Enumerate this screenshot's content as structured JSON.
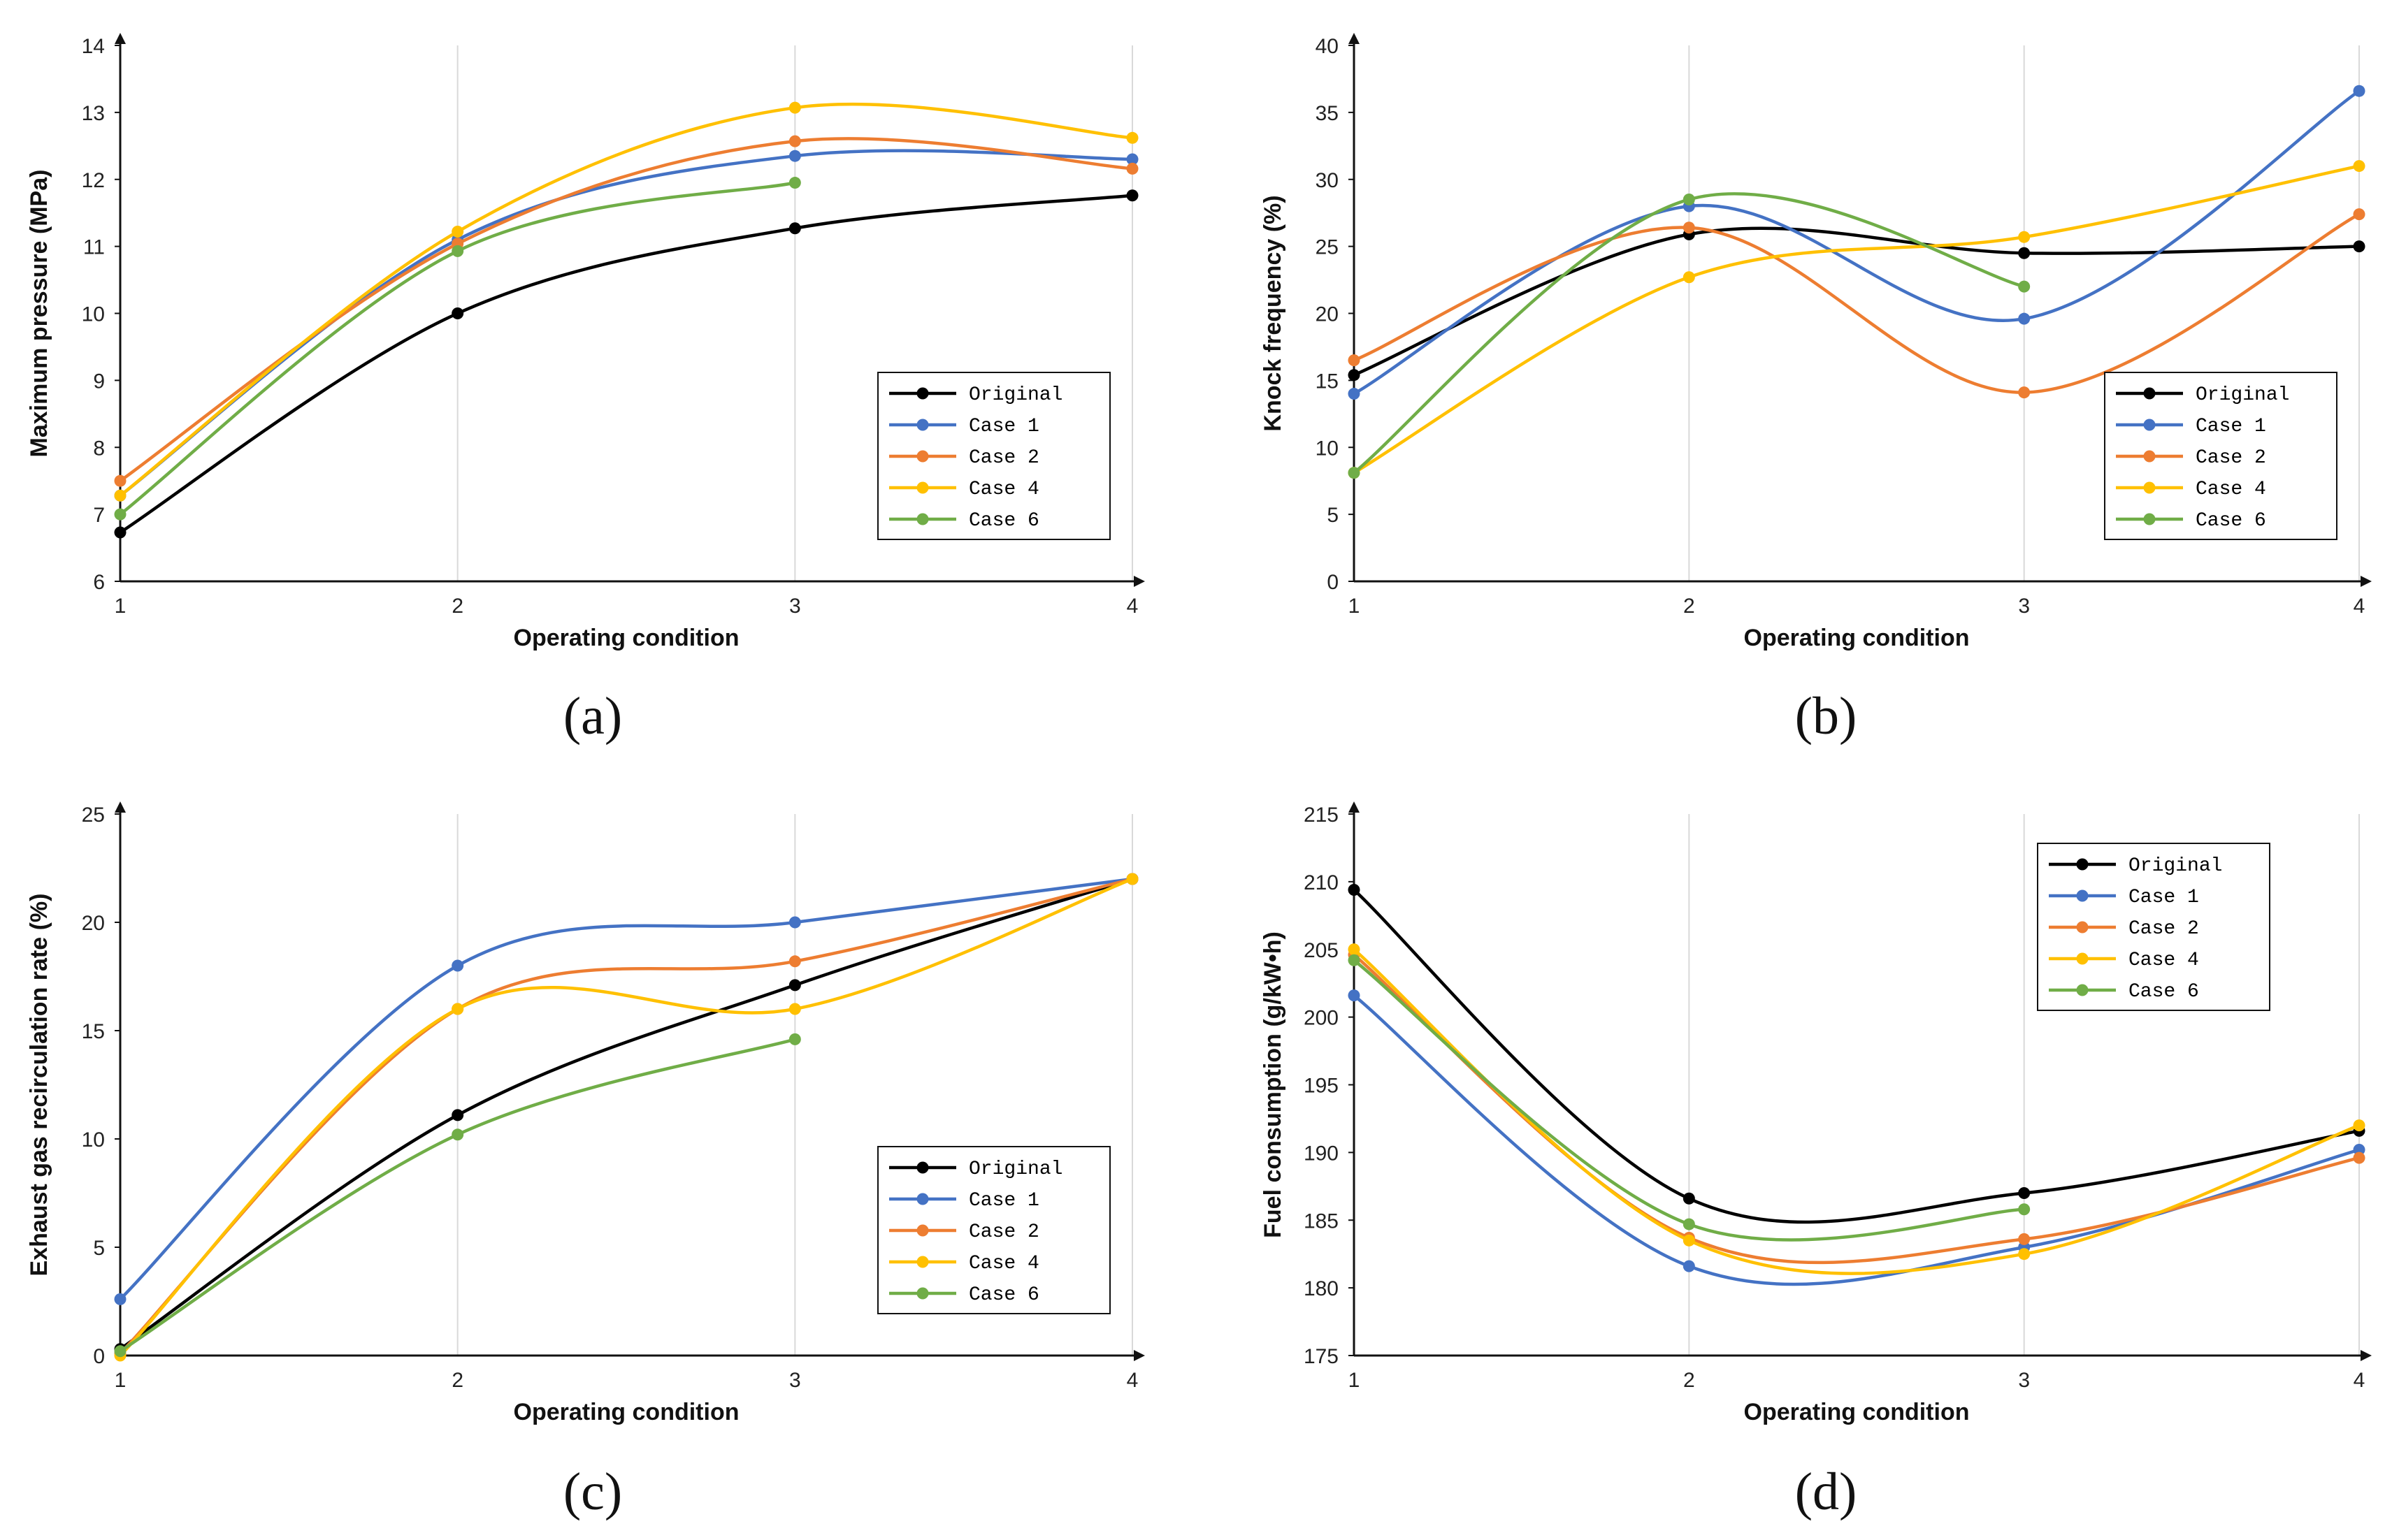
{
  "chart_data": [
    {
      "type": "line",
      "panel_label": "(a)",
      "xlabel": "Operating condition",
      "ylabel": "Maximum pressure (MPa)",
      "x": [
        1,
        2,
        3,
        4
      ],
      "xlim": [
        1,
        4
      ],
      "ylim": [
        6,
        14
      ],
      "ytick_step": 1,
      "legend_position": "bottom-right",
      "series": [
        {
          "name": "Original",
          "color": "#000000",
          "values": [
            6.73,
            10.0,
            11.27,
            11.76
          ]
        },
        {
          "name": "Case 1",
          "color": "#4472C4",
          "values": [
            7.28,
            11.1,
            12.35,
            12.3
          ]
        },
        {
          "name": "Case 2",
          "color": "#ED7D31",
          "values": [
            7.5,
            11.04,
            12.57,
            12.16
          ]
        },
        {
          "name": "Case 4",
          "color": "#FFC000",
          "values": [
            7.28,
            11.22,
            13.07,
            12.62
          ]
        },
        {
          "name": "Case 6",
          "color": "#70AD47",
          "values": [
            7.0,
            10.93,
            11.95,
            null
          ]
        }
      ]
    },
    {
      "type": "line",
      "panel_label": "(b)",
      "xlabel": "Operating condition",
      "ylabel": "Knock frequency (%)",
      "x": [
        1,
        2,
        3,
        4
      ],
      "xlim": [
        1,
        4
      ],
      "ylim": [
        0,
        40
      ],
      "ytick_step": 5,
      "legend_position": "bottom-right",
      "series": [
        {
          "name": "Original",
          "color": "#000000",
          "values": [
            15.4,
            25.9,
            24.5,
            25.0
          ]
        },
        {
          "name": "Case 1",
          "color": "#4472C4",
          "values": [
            14.0,
            28.0,
            19.6,
            36.6
          ]
        },
        {
          "name": "Case 2",
          "color": "#ED7D31",
          "values": [
            16.5,
            26.4,
            14.1,
            27.4
          ]
        },
        {
          "name": "Case 4",
          "color": "#FFC000",
          "values": [
            8.1,
            22.7,
            25.7,
            31.0
          ]
        },
        {
          "name": "Case 6",
          "color": "#70AD47",
          "values": [
            8.1,
            28.5,
            22.0,
            null
          ]
        }
      ]
    },
    {
      "type": "line",
      "panel_label": "(c)",
      "xlabel": "Operating condition",
      "ylabel": "Exhaust gas recirculation rate (%)",
      "x": [
        1,
        2,
        3,
        4
      ],
      "xlim": [
        1,
        4
      ],
      "ylim": [
        0,
        25
      ],
      "ytick_step": 5,
      "legend_position": "bottom-right",
      "series": [
        {
          "name": "Original",
          "color": "#000000",
          "values": [
            0.3,
            11.1,
            17.1,
            22.0
          ]
        },
        {
          "name": "Case 1",
          "color": "#4472C4",
          "values": [
            2.6,
            18.0,
            20.0,
            22.0
          ]
        },
        {
          "name": "Case 2",
          "color": "#ED7D31",
          "values": [
            0.1,
            16.0,
            18.2,
            22.0
          ]
        },
        {
          "name": "Case 4",
          "color": "#FFC000",
          "values": [
            0.0,
            16.0,
            16.0,
            22.0
          ]
        },
        {
          "name": "Case 6",
          "color": "#70AD47",
          "values": [
            0.2,
            10.2,
            14.6,
            null
          ]
        }
      ]
    },
    {
      "type": "line",
      "panel_label": "(d)",
      "xlabel": "Operating condition",
      "ylabel": "Fuel consumption (g/kW•h)",
      "x": [
        1,
        2,
        3,
        4
      ],
      "xlim": [
        1,
        4
      ],
      "ylim": [
        175,
        215
      ],
      "ytick_step": 5,
      "legend_position": "top-right",
      "series": [
        {
          "name": "Original",
          "color": "#000000",
          "values": [
            209.4,
            186.6,
            187.0,
            191.6
          ]
        },
        {
          "name": "Case 1",
          "color": "#4472C4",
          "values": [
            201.6,
            181.6,
            183.0,
            190.2
          ]
        },
        {
          "name": "Case 2",
          "color": "#ED7D31",
          "values": [
            204.6,
            183.7,
            183.6,
            189.6
          ]
        },
        {
          "name": "Case 4",
          "color": "#FFC000",
          "values": [
            205.0,
            183.5,
            182.5,
            192.0
          ]
        },
        {
          "name": "Case 6",
          "color": "#70AD47",
          "values": [
            204.2,
            184.7,
            185.8,
            null
          ]
        }
      ]
    }
  ]
}
